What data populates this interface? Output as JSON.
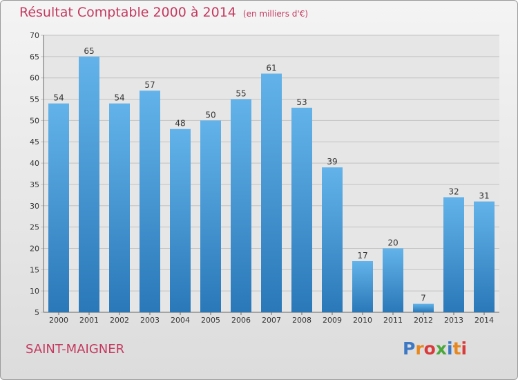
{
  "header": {
    "title": "Résultat Comptable 2000 à 2014",
    "unit": "(en milliers d'€)"
  },
  "footer": {
    "town": "SAINT-MAIGNER",
    "logo": [
      "P",
      "r",
      "o",
      "x",
      "i",
      "t",
      "i"
    ]
  },
  "colors": {
    "title": "#c4395f",
    "bar_top": "#63b3ea",
    "bar_bottom": "#2a78b8",
    "logo": [
      "#3d78c4",
      "#e8871e",
      "#d93a3a",
      "#4aa83a",
      "#3d78c4",
      "#e8871e",
      "#d93a3a"
    ]
  },
  "chart_data": {
    "type": "bar",
    "title": "Résultat Comptable 2000 à 2014",
    "xlabel": "",
    "ylabel": "",
    "categories": [
      "2000",
      "2001",
      "2002",
      "2003",
      "2004",
      "2005",
      "2006",
      "2007",
      "2008",
      "2009",
      "2010",
      "2011",
      "2012",
      "2013",
      "2014"
    ],
    "values": [
      54,
      65,
      54,
      57,
      48,
      50,
      55,
      61,
      53,
      39,
      17,
      20,
      7,
      32,
      31
    ],
    "ylim": [
      5,
      70
    ],
    "yticks": [
      5,
      10,
      15,
      20,
      25,
      30,
      35,
      40,
      45,
      50,
      55,
      60,
      65,
      70
    ],
    "grid": true
  }
}
